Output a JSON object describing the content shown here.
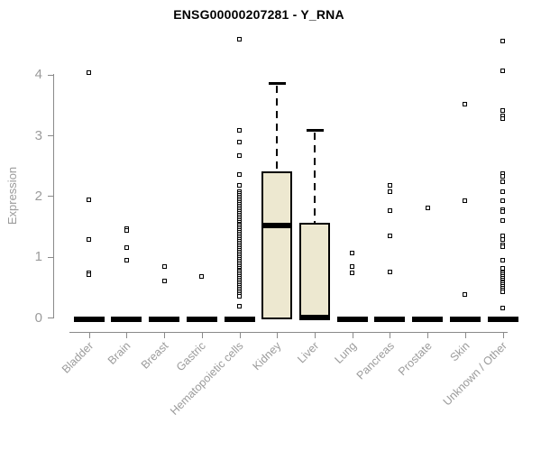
{
  "chart_data": {
    "type": "boxplot",
    "title": "ENSG00000207281 - Y_RNA",
    "ylabel": "Expression",
    "xlabel": "",
    "yticks": [
      0,
      1,
      2,
      3,
      4
    ],
    "ylim": [
      0,
      4.65
    ],
    "grid": false,
    "legend": null,
    "colors": {
      "box_fill": "#EDE8D0",
      "box_border": "#000000",
      "axis": "#8a8a8a",
      "tick_text": "#9b9b9b",
      "title_text": "#000000"
    },
    "categories": [
      "Bladder",
      "Brain",
      "Breast",
      "Gastric",
      "Hematopoietic cells",
      "Kidney",
      "Liver",
      "Lung",
      "Pancreas",
      "Prostate",
      "Skin",
      "Unknown / Other"
    ],
    "series": [
      {
        "category": "Bladder",
        "q1": 0,
        "median": 0,
        "q3": 0,
        "whisker_low": 0,
        "whisker_high": 0,
        "outliers": [
          4.04,
          1.94,
          1.29,
          0.74,
          0.7
        ]
      },
      {
        "category": "Brain",
        "q1": 0,
        "median": 0,
        "q3": 0,
        "whisker_low": 0,
        "whisker_high": 0,
        "outliers": [
          1.47,
          1.43,
          1.15,
          0.94
        ]
      },
      {
        "category": "Breast",
        "q1": 0,
        "median": 0,
        "q3": 0,
        "whisker_low": 0,
        "whisker_high": 0,
        "outliers": [
          0.84,
          0.6
        ]
      },
      {
        "category": "Gastric",
        "q1": 0,
        "median": 0,
        "q3": 0,
        "whisker_low": 0,
        "whisker_high": 0,
        "outliers": [
          0.67
        ]
      },
      {
        "category": "Hematopoietic cells",
        "q1": 0,
        "median": 0,
        "q3": 0,
        "whisker_low": 0,
        "whisker_high": 0,
        "outliers": [
          4.59,
          3.08,
          2.89,
          2.66,
          2.35,
          2.18,
          0.18
        ],
        "outlier_band": {
          "min": 0.35,
          "max": 2.07,
          "count": 60
        }
      },
      {
        "category": "Kidney",
        "q1": 0,
        "median": 1.52,
        "q3": 2.4,
        "whisker_low": 0,
        "whisker_high": 3.87,
        "outliers": []
      },
      {
        "category": "Liver",
        "q1": 0,
        "median": 0,
        "q3": 1.56,
        "whisker_low": 0,
        "whisker_high": 3.09,
        "outliers": []
      },
      {
        "category": "Lung",
        "q1": 0,
        "median": 0,
        "q3": 0,
        "whisker_low": 0,
        "whisker_high": 0,
        "outliers": [
          1.06,
          0.84,
          0.74
        ]
      },
      {
        "category": "Pancreas",
        "q1": 0,
        "median": 0,
        "q3": 0,
        "whisker_low": 0,
        "whisker_high": 0,
        "outliers": [
          2.18,
          2.07,
          1.76,
          1.34,
          0.75
        ]
      },
      {
        "category": "Prostate",
        "q1": 0,
        "median": 0,
        "q3": 0,
        "whisker_low": 0,
        "whisker_high": 0,
        "outliers": [
          1.81
        ]
      },
      {
        "category": "Skin",
        "q1": 0,
        "median": 0,
        "q3": 0,
        "whisker_low": 0,
        "whisker_high": 0,
        "outliers": [
          3.52,
          1.93,
          0.38
        ]
      },
      {
        "category": "Unknown / Other",
        "q1": 0,
        "median": 0,
        "q3": 0,
        "whisker_low": 0,
        "whisker_high": 0,
        "outliers": [
          4.56,
          4.07,
          3.41,
          3.32,
          3.28,
          2.37,
          2.33,
          2.23,
          2.07,
          1.92,
          1.78,
          1.74,
          1.59,
          1.34,
          1.28,
          1.19,
          1.16,
          0.95,
          0.81,
          0.75,
          0.15
        ],
        "outlier_band": {
          "min": 0.43,
          "max": 0.73,
          "count": 12
        }
      }
    ]
  }
}
